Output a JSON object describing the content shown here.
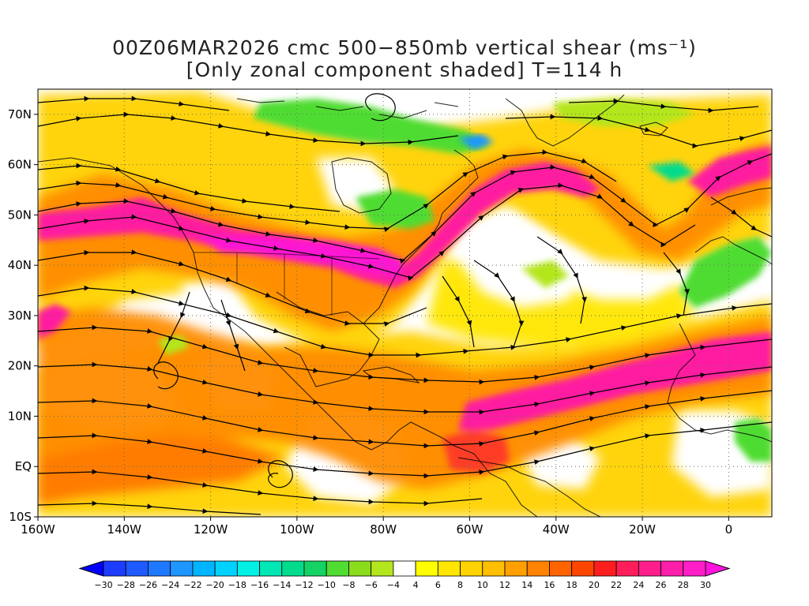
{
  "title": {
    "line1": "00Z06MAR2026 cmc 500−850mb vertical shear (ms⁻¹)",
    "line2": "[Only zonal component shaded] T=114 h"
  },
  "map": {
    "projection": "cylindrical equidistant",
    "lon_range": [
      -160,
      10
    ],
    "lat_range": [
      -10,
      75
    ],
    "lat_ticks": [
      {
        "value": 70,
        "label": "70N"
      },
      {
        "value": 60,
        "label": "60N"
      },
      {
        "value": 50,
        "label": "50N"
      },
      {
        "value": 40,
        "label": "40N"
      },
      {
        "value": 30,
        "label": "30N"
      },
      {
        "value": 20,
        "label": "20N"
      },
      {
        "value": 10,
        "label": "10N"
      },
      {
        "value": 0,
        "label": "EQ"
      },
      {
        "value": -10,
        "label": "10S"
      }
    ],
    "lon_ticks": [
      {
        "value": -160,
        "label": "160W"
      },
      {
        "value": -140,
        "label": "140W"
      },
      {
        "value": -120,
        "label": "120W"
      },
      {
        "value": -100,
        "label": "100W"
      },
      {
        "value": -80,
        "label": "80W"
      },
      {
        "value": -60,
        "label": "60W"
      },
      {
        "value": -40,
        "label": "40W"
      },
      {
        "value": -20,
        "label": "20W"
      },
      {
        "value": 0,
        "label": "0"
      }
    ],
    "gridlines": "dotted"
  },
  "colorbar": {
    "labels": [
      "-30",
      "-28",
      "-26",
      "-24",
      "-22",
      "-20",
      "-18",
      "-16",
      "-14",
      "-12",
      "-10",
      "-8",
      "-6",
      "-4",
      "4",
      "6",
      "8",
      "10",
      "12",
      "14",
      "16",
      "18",
      "20",
      "22",
      "24",
      "26",
      "28",
      "30"
    ],
    "colors": [
      "#1e3cff",
      "#1e5aff",
      "#1e78ff",
      "#1e96ff",
      "#00b4ff",
      "#00d2ff",
      "#00f0e6",
      "#00e6b4",
      "#00dc8c",
      "#14d264",
      "#50dc32",
      "#8cdc1e",
      "#b4e61e",
      "#ffffff",
      "#ffff00",
      "#ffe600",
      "#ffd200",
      "#ffbe00",
      "#ffa000",
      "#ff8200",
      "#ff6400",
      "#ff4600",
      "#ff1e1e",
      "#ff1e5a",
      "#ff1e8c",
      "#ff1eaa",
      "#ff1ec8"
    ],
    "left_arrow_color": "#0000ff",
    "right_arrow_color": "#ff14dc"
  },
  "shading_legend_colors": {
    "yellow": "#ffff00",
    "gold": "#ffd200",
    "orange": "#ffa000",
    "orange_red": "#ff6400",
    "red": "#ff2a2a",
    "magenta": "#ff1ea0",
    "hot_pink": "#ff14d2",
    "green": "#50dc32",
    "light_green": "#b4e61e",
    "teal": "#00dc8c",
    "blue": "#1e96ff"
  }
}
